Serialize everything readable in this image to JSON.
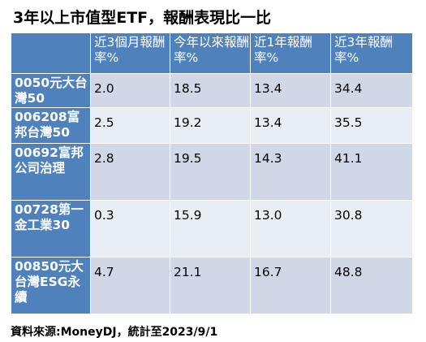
{
  "title": "3年以上市值型ETF，報酬表現比一比",
  "table": {
    "headers": [
      "",
      "近3個月報酬率%",
      "今年以來報酬率%",
      "近1年報酬率%",
      "近3年報酬率%"
    ],
    "rows": [
      {
        "name": "0050元大台灣50",
        "values": [
          "2.0",
          "18.5",
          "13.4",
          "34.4"
        ]
      },
      {
        "name": "006208富邦台灣50",
        "values": [
          "2.5",
          "19.2",
          "13.4",
          "35.5"
        ]
      },
      {
        "name": "00692富邦公司治理",
        "values": [
          "2.8",
          "19.5",
          "14.3",
          "41.1"
        ]
      },
      {
        "name": "00728第一金工業30",
        "values": [
          "0.3",
          "15.9",
          "13.0",
          "30.8"
        ]
      },
      {
        "name": "00850元大台灣ESG永續",
        "values": [
          "4.7",
          "21.1",
          "16.7",
          "48.8"
        ]
      }
    ]
  },
  "source": "資料來源:MoneyDJ，統計至2023/9/1",
  "colors": {
    "header_bg": "#4f81bd",
    "row_band_dark": "#d0d8e8",
    "row_band_light": "#e9edf4"
  }
}
